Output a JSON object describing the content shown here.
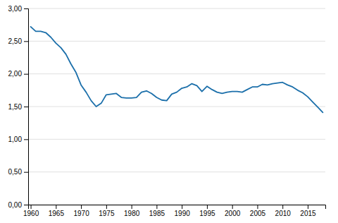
{
  "chart_data": {
    "type": "line",
    "x": [
      1960,
      1961,
      1962,
      1963,
      1964,
      1965,
      1966,
      1967,
      1968,
      1969,
      1970,
      1971,
      1972,
      1973,
      1974,
      1975,
      1976,
      1977,
      1978,
      1979,
      1980,
      1981,
      1982,
      1983,
      1984,
      1985,
      1986,
      1987,
      1988,
      1989,
      1990,
      1991,
      1992,
      1993,
      1994,
      1995,
      1996,
      1997,
      1998,
      1999,
      2000,
      2001,
      2002,
      2003,
      2004,
      2005,
      2006,
      2007,
      2008,
      2009,
      2010,
      2011,
      2012,
      2013,
      2014,
      2015,
      2016,
      2017,
      2018
    ],
    "values": [
      2.72,
      2.65,
      2.65,
      2.63,
      2.56,
      2.47,
      2.4,
      2.3,
      2.15,
      2.02,
      1.83,
      1.72,
      1.59,
      1.5,
      1.55,
      1.68,
      1.69,
      1.7,
      1.64,
      1.63,
      1.63,
      1.64,
      1.72,
      1.74,
      1.7,
      1.64,
      1.6,
      1.59,
      1.69,
      1.72,
      1.78,
      1.8,
      1.85,
      1.82,
      1.73,
      1.81,
      1.76,
      1.72,
      1.7,
      1.72,
      1.73,
      1.73,
      1.72,
      1.76,
      1.8,
      1.8,
      1.84,
      1.83,
      1.85,
      1.86,
      1.87,
      1.83,
      1.8,
      1.75,
      1.71,
      1.65,
      1.57,
      1.49,
      1.41
    ],
    "color": "#1b6faa",
    "xlim": [
      1959.5,
      2018.5
    ],
    "xticks": [
      1960,
      1965,
      1970,
      1975,
      1980,
      1985,
      1990,
      1995,
      2000,
      2005,
      2010,
      2015
    ],
    "ylim": [
      0.0,
      3.0
    ],
    "yticks": [
      {
        "value": 0.0,
        "label": "0,00"
      },
      {
        "value": 0.5,
        "label": "0,50"
      },
      {
        "value": 1.0,
        "label": "1,00"
      },
      {
        "value": 1.5,
        "label": "1,50"
      },
      {
        "value": 2.0,
        "label": "2,00"
      },
      {
        "value": 2.5,
        "label": "2,50"
      },
      {
        "value": 3.0,
        "label": "3,00"
      }
    ],
    "grid": true
  }
}
